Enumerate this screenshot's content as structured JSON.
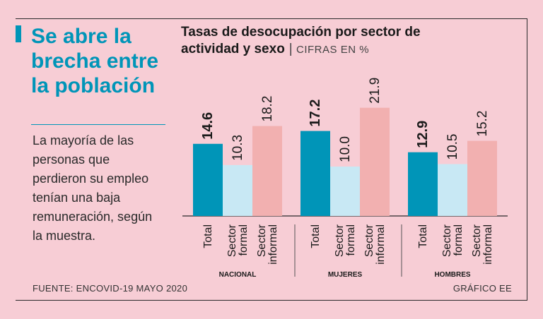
{
  "headline": "Se abre la brecha entre la población",
  "summary": "La mayoría de las personas que perdieron su empleo tenían una baja remuneración, según la muestra.",
  "chart_title": "Tasas de desocupación por sector de actividad y sexo",
  "chart_title_separator": "|",
  "chart_unit": "CIFRAS EN %",
  "source": "FUENTE: ENCOVID-19 MAYO 2020",
  "credit": "GRÁFICO EE",
  "colors": {
    "total": "#0095b8",
    "formal": "#c8e8f4",
    "informal": "#f2b0b0",
    "background": "#f7cdd5"
  },
  "chart_data": {
    "type": "bar",
    "title": "Tasas de desocupación por sector de actividad y sexo",
    "ylabel": "",
    "ylim": [
      0,
      25
    ],
    "grid": false,
    "legend": "none",
    "groups": [
      {
        "name": "NACIONAL",
        "bars": [
          {
            "label": [
              "Total"
            ],
            "value": 14.6,
            "display": "14.6"
          },
          {
            "label": [
              "Sector",
              "formal"
            ],
            "value": 10.3,
            "display": "10.3"
          },
          {
            "label": [
              "Sector",
              "informal"
            ],
            "value": 18.2,
            "display": "18.2"
          }
        ]
      },
      {
        "name": "MUJERES",
        "bars": [
          {
            "label": [
              "Total"
            ],
            "value": 17.2,
            "display": "17.2"
          },
          {
            "label": [
              "Sector",
              "formal"
            ],
            "value": 10.0,
            "display": "10.0"
          },
          {
            "label": [
              "Sector",
              "informal"
            ],
            "value": 21.9,
            "display": "21.9"
          }
        ]
      },
      {
        "name": "HOMBRES",
        "bars": [
          {
            "label": [
              "Total"
            ],
            "value": 12.9,
            "display": "12.9"
          },
          {
            "label": [
              "Sector",
              "formal"
            ],
            "value": 10.5,
            "display": "10.5"
          },
          {
            "label": [
              "Sector",
              "informal"
            ],
            "value": 15.2,
            "display": "15.2"
          }
        ]
      }
    ]
  }
}
